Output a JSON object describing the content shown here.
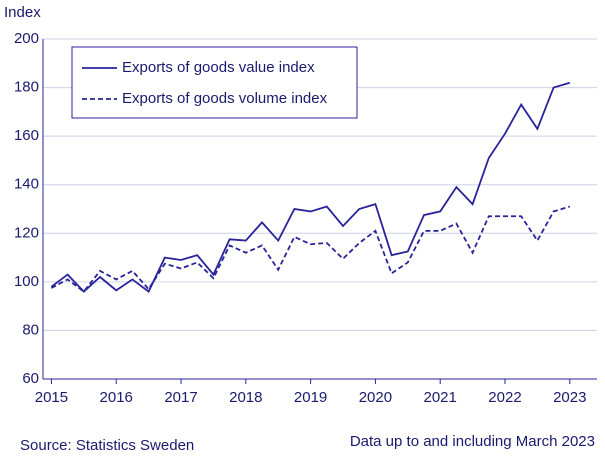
{
  "chart_data": {
    "type": "line",
    "y_axis_label": "Index",
    "source": "Source: Statistics Sweden",
    "note": "Data up to and including March 2023",
    "x": [
      2015,
      2015.25,
      2015.5,
      2015.75,
      2016,
      2016.25,
      2016.5,
      2016.75,
      2017,
      2017.25,
      2017.5,
      2017.75,
      2018,
      2018.25,
      2018.5,
      2018.75,
      2019,
      2019.25,
      2019.5,
      2019.75,
      2020,
      2020.25,
      2020.5,
      2020.75,
      2021,
      2021.25,
      2021.5,
      2021.75,
      2022,
      2022.25,
      2022.5,
      2022.75,
      2023
    ],
    "series": [
      {
        "name": "Exports of goods value index",
        "color": "#28239b",
        "dash": false,
        "values": [
          98,
          103,
          96,
          102,
          96.5,
          101,
          96,
          110,
          109,
          111,
          103,
          117.5,
          117,
          124.5,
          117,
          130,
          129,
          131,
          123,
          130,
          132,
          111,
          112.5,
          127.5,
          129,
          139,
          132,
          151,
          161,
          173,
          163,
          180,
          182
        ]
      },
      {
        "name": "Exports of goods volume index",
        "color": "#28239b",
        "dash": true,
        "values": [
          97.5,
          101,
          96,
          104.5,
          101,
          104.5,
          97,
          107.5,
          105.5,
          108,
          101.5,
          115,
          112,
          115,
          105,
          118.5,
          115.5,
          116,
          109.5,
          116,
          121,
          103.5,
          108,
          121,
          121,
          124,
          112,
          127,
          127,
          127,
          117,
          129,
          131
        ]
      }
    ],
    "xlim": [
      2014.87,
      2023.42
    ],
    "xticks": [
      2015,
      2016,
      2017,
      2018,
      2019,
      2020,
      2021,
      2022,
      2023
    ],
    "ylim": [
      60,
      200
    ],
    "yticks": [
      60,
      80,
      100,
      120,
      140,
      160,
      180,
      200
    ],
    "grid": true,
    "legend": "top-left"
  }
}
